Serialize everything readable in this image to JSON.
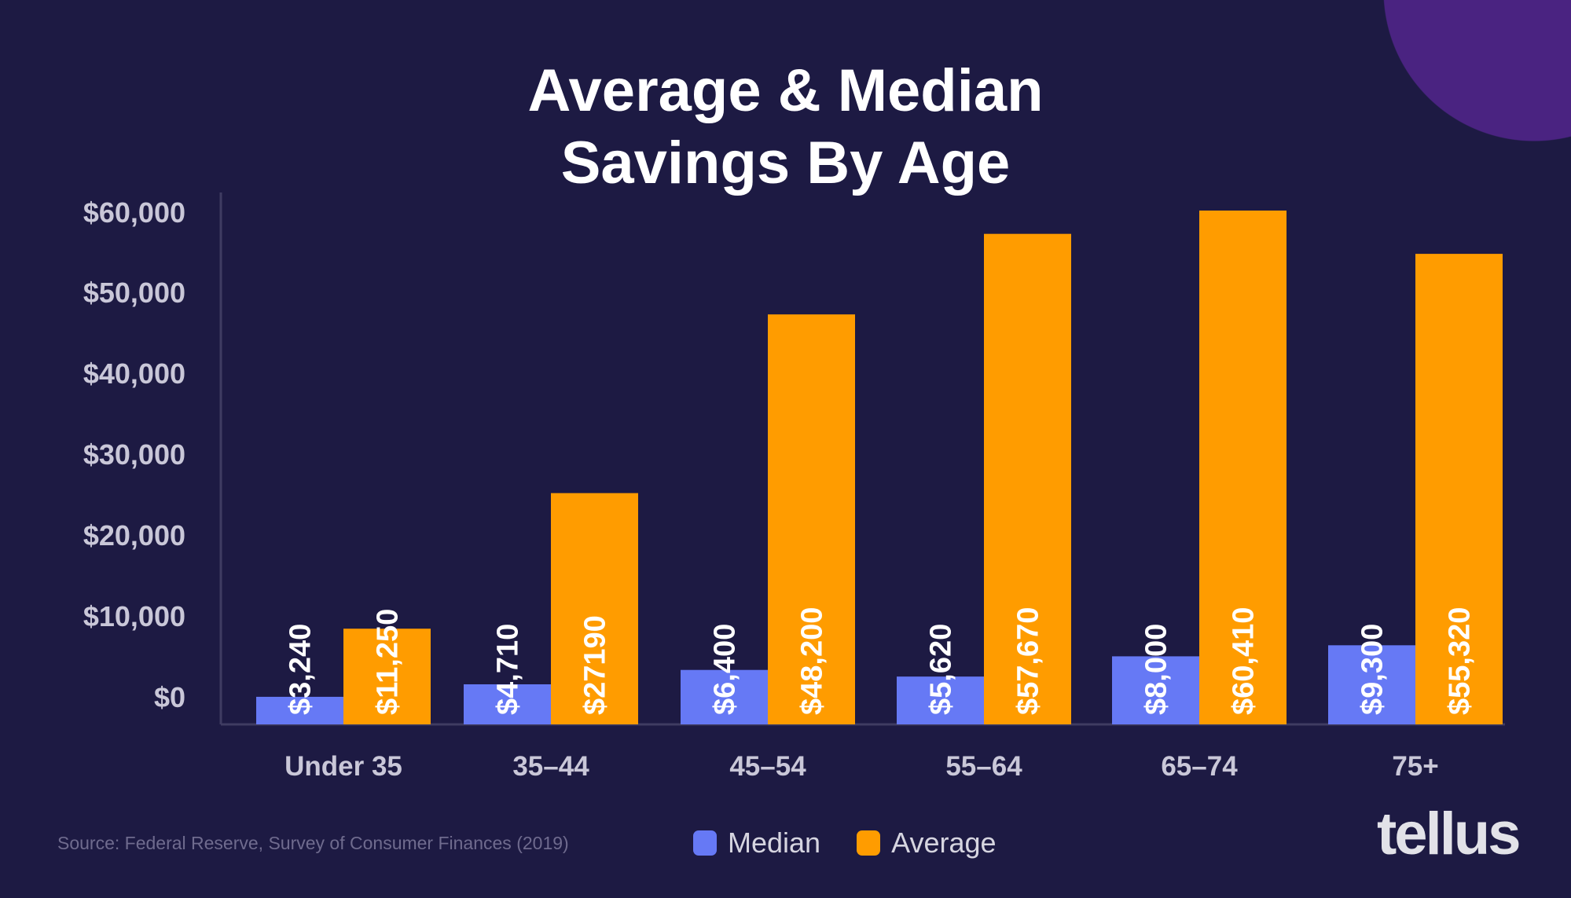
{
  "colors": {
    "background": "#1d1a43",
    "median": "#6679f5",
    "average": "#ff9c00",
    "decor": "#4a2381",
    "axis_text": "#c9c7d8"
  },
  "chart_data": {
    "type": "bar",
    "title": "Average & Median Savings By Age",
    "title_lines": [
      "Average & Median",
      "Savings By Age"
    ],
    "categories": [
      "Under 35",
      "35–44",
      "45–54",
      "55–64",
      "65–74",
      "75+"
    ],
    "series": [
      {
        "name": "Median",
        "values": [
          3240,
          4710,
          6400,
          5620,
          8000,
          9300
        ],
        "labels": [
          "$3,240",
          "$4,710",
          "$6,400",
          "$5,620",
          "$8,000",
          "$9,300"
        ]
      },
      {
        "name": "Average",
        "values": [
          11250,
          27190,
          48200,
          57670,
          60410,
          55320
        ],
        "labels": [
          "$11,250",
          "$27190",
          "$48,200",
          "$57,670",
          "$60,410",
          "$55,320"
        ]
      }
    ],
    "yticks": [
      "$0",
      "$10,000",
      "$20,000",
      "$30,000",
      "$40,000",
      "$50,000",
      "$60,000"
    ],
    "ylim": [
      0,
      60000
    ],
    "grid": false,
    "legend": "bottom-center"
  },
  "source": "Source: Federal Reserve, Survey of Consumer Finances (2019)",
  "logo": "tellus"
}
